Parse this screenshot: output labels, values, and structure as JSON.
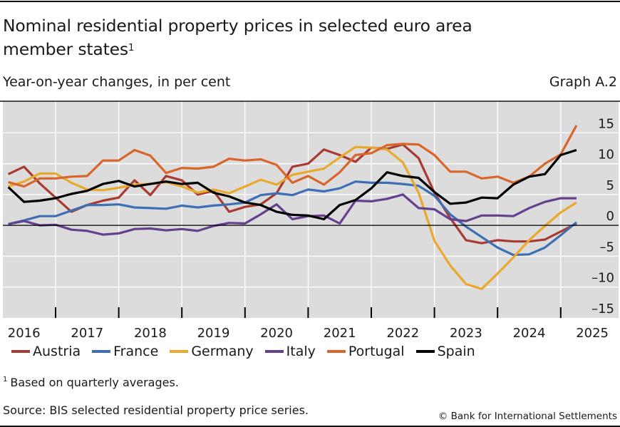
{
  "header": {
    "title": "Nominal residential property prices in selected euro area member states",
    "title_footnote_mark": "1",
    "subtitle": "Year-on-year changes, in per cent",
    "graph_id": "Graph A.2"
  },
  "footer": {
    "footnote_mark": "1",
    "footnote": "Based on quarterly averages.",
    "source": "Source: BIS selected residential property price series.",
    "copyright": "© Bank for International Settlements"
  },
  "colors": {
    "plot_background": "#dcdcdc",
    "gridline": "#ffffff",
    "zero_line": "#000000"
  },
  "chart_data": {
    "type": "line",
    "title": "Nominal residential property prices in selected euro area member states",
    "subtitle": "Year-on-year changes, in per cent",
    "xlabel": "",
    "ylabel": "",
    "frequency": "quarterly",
    "x": [
      "2016Q1",
      "2016Q2",
      "2016Q3",
      "2016Q4",
      "2017Q1",
      "2017Q2",
      "2017Q3",
      "2017Q4",
      "2018Q1",
      "2018Q2",
      "2018Q3",
      "2018Q4",
      "2019Q1",
      "2019Q2",
      "2019Q3",
      "2019Q4",
      "2020Q1",
      "2020Q2",
      "2020Q3",
      "2020Q4",
      "2021Q1",
      "2021Q2",
      "2021Q3",
      "2021Q4",
      "2022Q1",
      "2022Q2",
      "2022Q3",
      "2022Q4",
      "2023Q1",
      "2023Q2",
      "2023Q3",
      "2023Q4",
      "2024Q1",
      "2024Q2",
      "2024Q3",
      "2024Q4",
      "2025Q1"
    ],
    "x_tick_labels": [
      "2016",
      "2017",
      "2018",
      "2019",
      "2020",
      "2021",
      "2022",
      "2023",
      "2024",
      "2025"
    ],
    "y_tick_labels": [
      "15",
      "10",
      "5",
      "0",
      "–5",
      "–10",
      "–15"
    ],
    "y_ticks": [
      15,
      10,
      5,
      0,
      -5,
      -10,
      -15
    ],
    "ylim": [
      -15,
      20
    ],
    "y_axis_side": "right",
    "grid": true,
    "legend_position": "bottom",
    "series": [
      {
        "name": "Austria",
        "color": "#a83a32",
        "values": [
          8.3,
          9.5,
          6.8,
          4.5,
          2.2,
          3.3,
          4.0,
          4.5,
          7.3,
          4.9,
          8.0,
          7.3,
          5.0,
          5.6,
          2.2,
          3.0,
          3.4,
          5.2,
          9.5,
          10.0,
          12.3,
          11.4,
          10.3,
          12.6,
          12.4,
          13.1,
          10.9,
          5.3,
          1.2,
          -2.4,
          -2.9,
          -2.4,
          -2.6,
          -2.6,
          -2.3,
          -1.0,
          0.3
        ]
      },
      {
        "name": "France",
        "color": "#3d6fb4",
        "values": [
          0.2,
          0.8,
          1.5,
          1.5,
          2.4,
          3.3,
          3.3,
          3.4,
          2.9,
          2.8,
          2.7,
          3.2,
          2.9,
          3.2,
          3.4,
          3.7,
          4.9,
          5.2,
          4.9,
          5.8,
          5.5,
          6.0,
          7.1,
          6.9,
          6.9,
          6.7,
          6.4,
          4.8,
          1.8,
          -0.2,
          -1.9,
          -3.6,
          -4.8,
          -4.7,
          -3.6,
          -1.6,
          0.5
        ]
      },
      {
        "name": "Germany",
        "color": "#e8a92c",
        "values": [
          6.3,
          7.1,
          8.4,
          8.4,
          6.9,
          5.8,
          5.7,
          6.1,
          6.6,
          6.7,
          7.0,
          6.3,
          5.3,
          5.8,
          5.2,
          6.3,
          7.4,
          6.6,
          8.2,
          8.7,
          9.2,
          11.0,
          12.7,
          12.6,
          12.3,
          10.2,
          5.3,
          -2.5,
          -6.5,
          -9.5,
          -10.3,
          -7.8,
          -5.2,
          -2.4,
          -0.1,
          2.1,
          3.7
        ]
      },
      {
        "name": "Italy",
        "color": "#65408f",
        "values": [
          0.2,
          0.7,
          0.0,
          0.1,
          -0.7,
          -0.9,
          -1.5,
          -1.3,
          -0.6,
          -0.5,
          -0.8,
          -0.6,
          -0.9,
          -0.1,
          0.4,
          0.3,
          1.8,
          3.4,
          1.0,
          1.5,
          1.6,
          0.3,
          4.0,
          3.9,
          4.3,
          5.0,
          2.8,
          2.6,
          1.0,
          0.7,
          1.6,
          1.6,
          1.5,
          2.8,
          3.8,
          4.4,
          4.4
        ]
      },
      {
        "name": "Portugal",
        "color": "#d8662a",
        "values": [
          7.0,
          6.3,
          7.6,
          7.6,
          7.9,
          8.0,
          10.5,
          10.5,
          12.2,
          11.3,
          8.5,
          9.3,
          9.2,
          9.5,
          10.8,
          10.5,
          10.7,
          9.8,
          6.9,
          8.0,
          6.6,
          8.6,
          11.4,
          11.7,
          13.0,
          13.2,
          13.1,
          11.4,
          8.7,
          8.7,
          7.6,
          7.9,
          6.9,
          7.9,
          10.0,
          11.5,
          16.2
        ]
      },
      {
        "name": "Spain",
        "color": "#000000",
        "values": [
          6.2,
          3.8,
          4.0,
          4.4,
          5.1,
          5.6,
          6.7,
          7.2,
          6.3,
          6.7,
          7.1,
          6.7,
          6.9,
          5.3,
          4.7,
          3.7,
          3.3,
          2.2,
          1.7,
          1.6,
          1.0,
          3.3,
          4.1,
          6.0,
          8.6,
          8.0,
          7.7,
          5.4,
          3.5,
          3.7,
          4.5,
          4.4,
          6.6,
          7.9,
          8.3,
          11.4,
          12.2
        ]
      }
    ]
  }
}
